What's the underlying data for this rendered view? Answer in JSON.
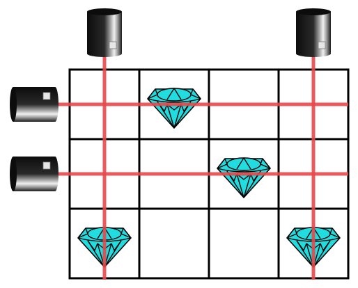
{
  "puzzle": {
    "grid": {
      "rows": 3,
      "cols": 4
    },
    "colors": {
      "background": "#ffffff",
      "grid_line": "#000000",
      "laser": "#e8474a",
      "gem_fill": "#22dde0",
      "gem_stroke": "#000000",
      "emitter_dark": "#0c0c0c",
      "emitter_light": "#e6e6e6"
    },
    "emitters": [
      {
        "name": "emitter-top-col-1",
        "side": "top",
        "index": 0
      },
      {
        "name": "emitter-top-col-4",
        "side": "top",
        "index": 3
      },
      {
        "name": "emitter-left-row-1",
        "side": "left",
        "index": 0
      },
      {
        "name": "emitter-left-row-2",
        "side": "left",
        "index": 1
      }
    ],
    "gems": [
      {
        "row": 0,
        "col": 1
      },
      {
        "row": 1,
        "col": 2
      },
      {
        "row": 2,
        "col": 0
      },
      {
        "row": 2,
        "col": 3
      }
    ],
    "icons": {
      "emitter": "laser-emitter-icon",
      "gem": "diamond-gem-icon"
    }
  }
}
